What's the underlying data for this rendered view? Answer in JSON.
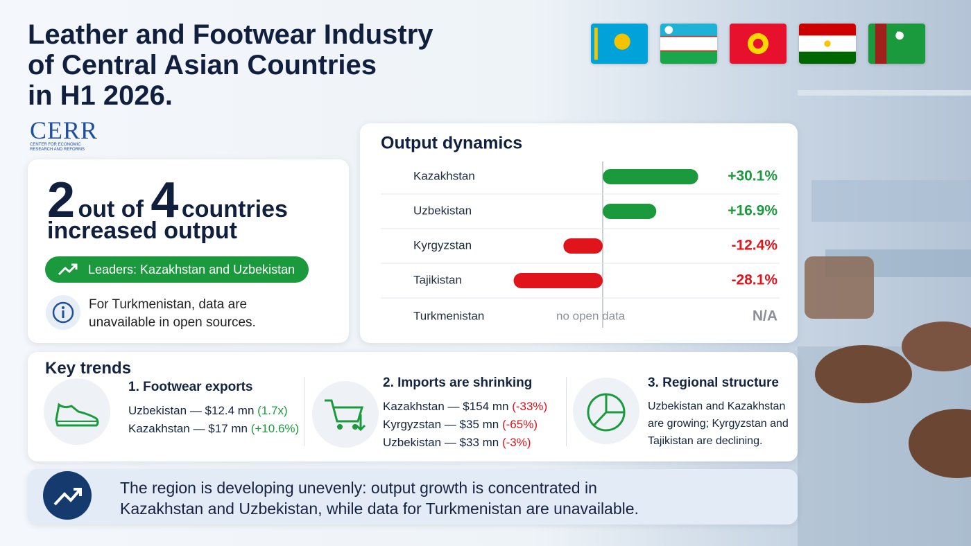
{
  "header": {
    "title_lines": [
      "Leather and Footwear Industry",
      "of Central Asian Countries",
      "in H1 2026."
    ],
    "logo": "CERR",
    "logo_subtitle_lines": [
      "CENTER FOR ECONOMIC",
      "RESEARCH AND REFORMS"
    ]
  },
  "summary": {
    "count": "2",
    "connector": "out of",
    "total": "4",
    "noun": "countries",
    "predicate": "increased output",
    "leaders": "Leaders: Kazakhstan and Uzbekistan",
    "note": "For Turkmenistan, data are unavailable in open sources."
  },
  "chart_data": {
    "type": "bar",
    "orientation": "horizontal",
    "title": "Output dynamics",
    "categories": [
      "Kazakhstan",
      "Uzbekistan",
      "Kyrgyzstan",
      "Tajikistan",
      "Turkmenistan"
    ],
    "values": [
      30.1,
      16.9,
      -12.4,
      -28.1,
      null
    ],
    "value_labels": [
      "+30.1%",
      "+16.9%",
      "-12.4%",
      "-28.1%",
      "N/A"
    ],
    "null_note": "no open data",
    "xlim": [
      -35,
      35
    ],
    "positive_color": "#1a9a3c",
    "negative_color": "#e0141b",
    "na_color": "#8a8f98"
  },
  "trends": {
    "title": "Key trends",
    "items": [
      {
        "title": "1. Footwear exports",
        "lines": [
          {
            "text": "Uzbekistan — $12.4 mn",
            "change": "(1.7x)",
            "color": "#1a9a3c"
          },
          {
            "text": "Kazakhstan — $17 mn",
            "change": "(+10.6%)",
            "color": "#1a9a3c"
          }
        ]
      },
      {
        "title": "2. Imports are shrinking",
        "lines": [
          {
            "text": "Kazakhstan — $154 mn",
            "change": "(-33%)",
            "color": "#e0141b"
          },
          {
            "text": "Kyrgyzstan — $35 mn",
            "change": "(-65%)",
            "color": "#e0141b"
          },
          {
            "text": "Uzbekistan — $33 mn",
            "change": "(-3%)",
            "color": "#e0141b"
          }
        ]
      },
      {
        "title": "3. Regional structure",
        "text": "Uzbekistan and Kazakhstan are growing; Kyrgyzstan and Tajikistan are declining."
      }
    ]
  },
  "footer": {
    "text": "The region is developing unevenly: output growth is concentrated in Kazakhstan and Uzbekistan, while data for Turkmenistan are unavailable."
  }
}
